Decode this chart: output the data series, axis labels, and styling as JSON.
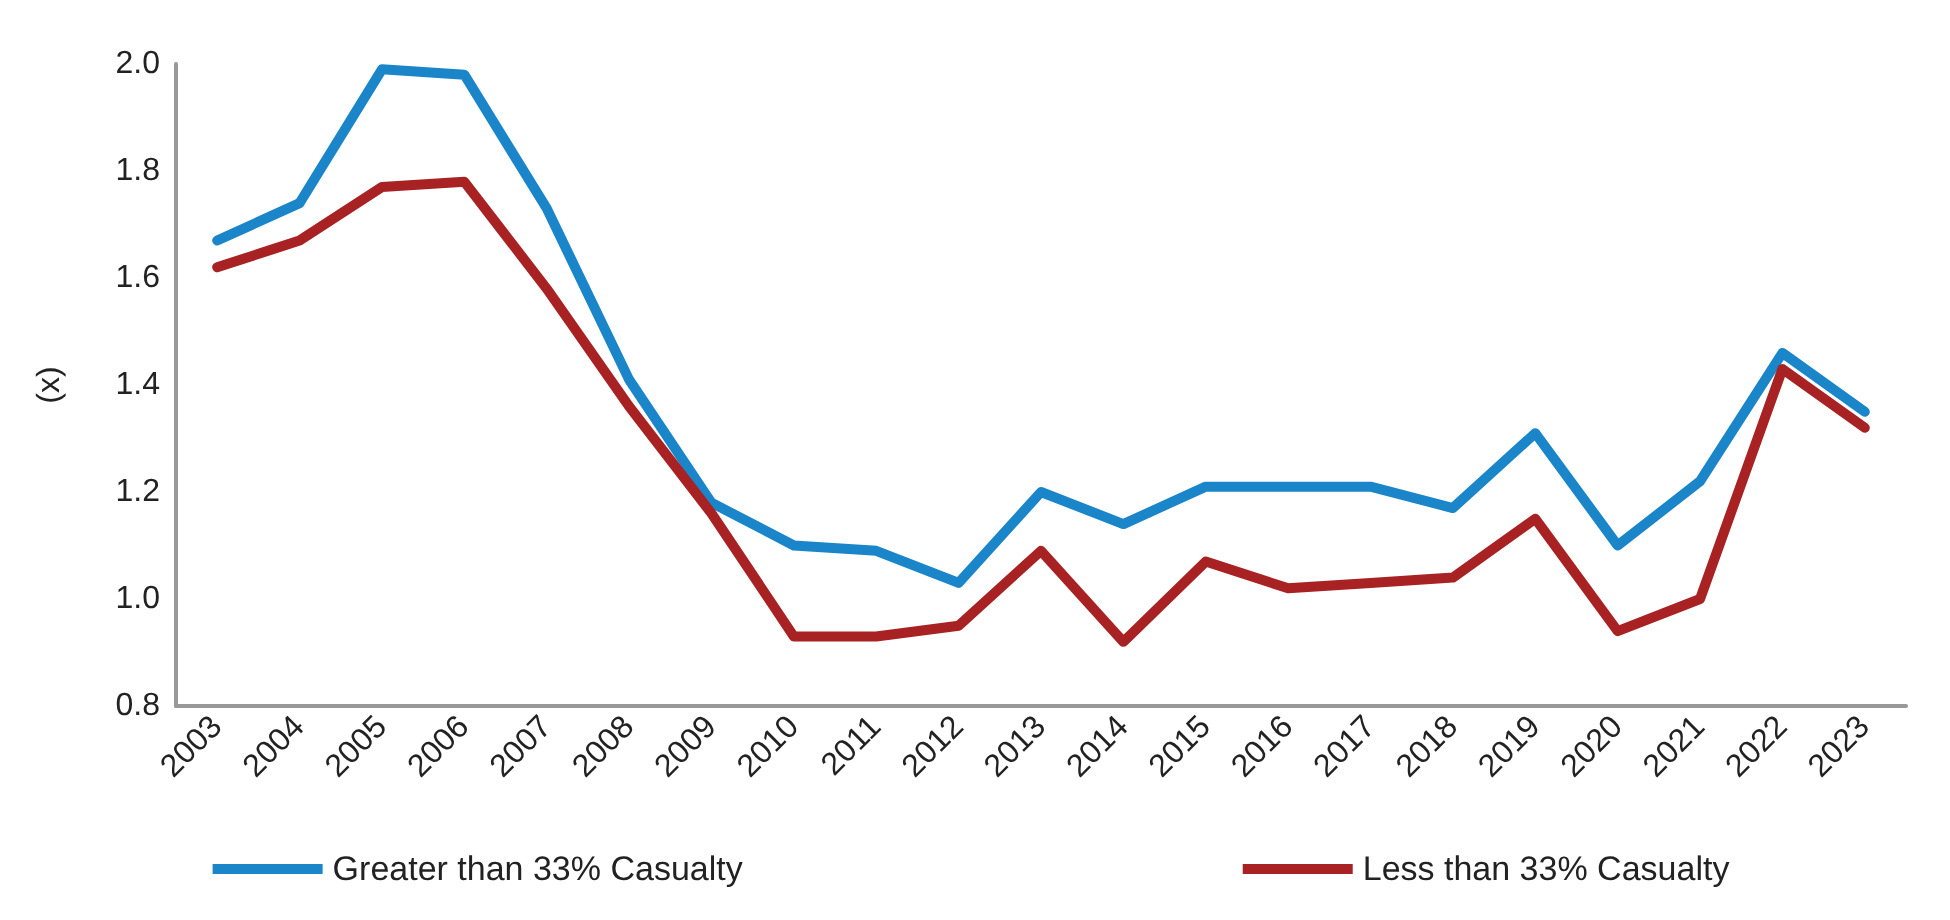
{
  "chart_data": {
    "type": "line",
    "ylabel": "(x)",
    "categories": [
      "2003",
      "2004",
      "2005",
      "2006",
      "2007",
      "2008",
      "2009",
      "2010",
      "2011",
      "2012",
      "2013",
      "2014",
      "2015",
      "2016",
      "2017",
      "2018",
      "2019",
      "2020",
      "2021",
      "2022",
      "2023"
    ],
    "series": [
      {
        "name": "Greater than 33% Casualty",
        "color": "#1a85c8",
        "values": [
          1.67,
          1.74,
          1.99,
          1.98,
          1.73,
          1.41,
          1.18,
          1.1,
          1.09,
          1.03,
          1.2,
          1.14,
          1.21,
          1.21,
          1.21,
          1.17,
          1.31,
          1.1,
          1.22,
          1.46,
          1.35
        ]
      },
      {
        "name": "Less than 33% Casualty",
        "color": "#a82224",
        "values": [
          1.62,
          1.67,
          1.77,
          1.78,
          1.58,
          1.36,
          1.16,
          0.93,
          0.93,
          0.95,
          1.09,
          0.92,
          1.07,
          1.02,
          1.03,
          1.04,
          1.15,
          0.94,
          1.0,
          1.43,
          1.32
        ]
      }
    ],
    "ylim": [
      0.8,
      2.0
    ],
    "yticks": [
      {
        "value": 0.8,
        "label": "0.8"
      },
      {
        "value": 1.0,
        "label": "1.0"
      },
      {
        "value": 1.2,
        "label": "1.2"
      },
      {
        "value": 1.4,
        "label": "1.4"
      },
      {
        "value": 1.6,
        "label": "1.6"
      },
      {
        "value": 1.8,
        "label": "1.8"
      },
      {
        "value": 2.0,
        "label": "2.0"
      }
    ],
    "grid": false,
    "legend": "bottom",
    "marker": "none",
    "line_style": "solid"
  }
}
